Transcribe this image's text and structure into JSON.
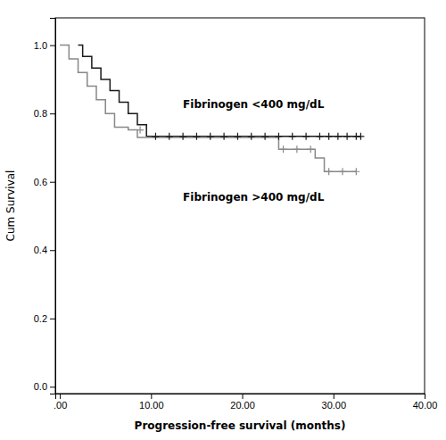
{
  "chart_data": {
    "type": "step",
    "xlabel": "Progression-free survival (months)",
    "ylabel": "Cum Survival",
    "xlim": [
      -0.5,
      40
    ],
    "ylim": [
      -0.02,
      1.08
    ],
    "xticks": [
      {
        "value": 0,
        "label": ".00"
      },
      {
        "value": 10,
        "label": "10.00"
      },
      {
        "value": 20,
        "label": "20.00"
      },
      {
        "value": 30,
        "label": "30.00"
      },
      {
        "value": 40,
        "label": "40.00"
      }
    ],
    "yticks": [
      {
        "value": 0.0,
        "label": "0.0"
      },
      0.2,
      0.4,
      0.6,
      0.8,
      {
        "value": 1.0,
        "label": "1.0"
      }
    ],
    "grid": false,
    "series": [
      {
        "type": "step",
        "color": "#1a1a1a",
        "x": [
          2.0,
          2.5,
          2.5,
          3.5,
          3.5,
          4.5,
          4.5,
          5.5,
          5.5,
          6.5,
          6.5,
          7.5,
          7.5,
          8.5,
          8.5,
          9.5,
          9.5,
          33.0
        ],
        "values": [
          1.0,
          1.0,
          0.967,
          0.967,
          0.933,
          0.933,
          0.9,
          0.9,
          0.867,
          0.867,
          0.833,
          0.833,
          0.8,
          0.8,
          0.767,
          0.767,
          0.733,
          0.733
        ]
      },
      {
        "type": "step",
        "color": "#888888",
        "x": [
          0.0,
          1.0,
          1.0,
          2.0,
          2.0,
          3.0,
          3.0,
          4.0,
          4.0,
          5.0,
          5.0,
          6.0,
          6.0,
          7.5,
          7.5,
          8.5,
          8.5,
          24.0,
          24.0,
          25.5,
          25.5,
          28.0,
          28.0,
          29.0,
          29.0,
          32.5
        ],
        "values": [
          1.0,
          1.0,
          0.96,
          0.96,
          0.92,
          0.92,
          0.88,
          0.88,
          0.84,
          0.84,
          0.8,
          0.8,
          0.76,
          0.76,
          0.752,
          0.752,
          0.73,
          0.73,
          0.695,
          0.695,
          0.695,
          0.695,
          0.67,
          0.67,
          0.63,
          0.63
        ]
      },
      {
        "type": "scatter",
        "marker": "plus",
        "color": "#1a1a1a",
        "x": [
          10.5,
          12.0,
          13.5,
          15.0,
          16.5,
          18.0,
          19.5,
          21.0,
          22.5,
          24.0,
          25.5,
          27.0,
          28.5,
          29.5,
          30.5,
          31.5,
          32.5,
          33.0
        ],
        "values": [
          0.733,
          0.733,
          0.733,
          0.733,
          0.733,
          0.733,
          0.733,
          0.733,
          0.733,
          0.733,
          0.733,
          0.733,
          0.733,
          0.733,
          0.733,
          0.733,
          0.733,
          0.733
        ]
      },
      {
        "type": "scatter",
        "marker": "plus",
        "color": "#888888",
        "x": [
          8.8
        ],
        "values": [
          0.752
        ]
      },
      {
        "type": "scatter",
        "marker": "plus",
        "color": "#888888",
        "x": [
          24.5,
          26.0,
          27.5
        ],
        "values": [
          0.695,
          0.695,
          0.695
        ]
      },
      {
        "type": "scatter",
        "marker": "plus",
        "color": "#888888",
        "x": [
          29.5,
          31.0,
          32.5
        ],
        "values": [
          0.63,
          0.63,
          0.63
        ]
      }
    ],
    "annotations": [
      {
        "text": "Fibrinogen <400 mg/dL",
        "x": 13.5,
        "y": 0.815
      },
      {
        "text": "Fibrinogen >400 mg/dL",
        "x": 13.5,
        "y": 0.545
      }
    ]
  }
}
